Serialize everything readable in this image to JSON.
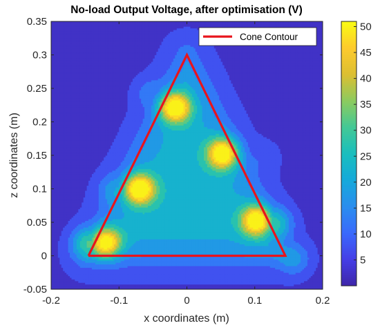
{
  "chart_data": {
    "type": "heatmap",
    "subtype": "filled-contour",
    "title": "No-load Output Voltage, after optimisation (V)",
    "xlabel": "x coordinates (m)",
    "ylabel": "z coordinates (m)",
    "xlim": [
      -0.2,
      0.2
    ],
    "ylim": [
      -0.05,
      0.35
    ],
    "x_ticks": [
      -0.2,
      -0.1,
      0,
      0.1,
      0.2
    ],
    "x_tick_labels": [
      "-0.2",
      "-0.1",
      "0",
      "0.1",
      "0.2"
    ],
    "y_ticks": [
      -0.05,
      0,
      0.05,
      0.1,
      0.15,
      0.2,
      0.25,
      0.3,
      0.35
    ],
    "y_tick_labels": [
      "-0.05",
      "0",
      "0.05",
      "0.1",
      "0.15",
      "0.2",
      "0.25",
      "0.3",
      "0.35"
    ],
    "colorbar": {
      "colormap": "parula",
      "range": [
        0,
        51
      ],
      "ticks": [
        5,
        10,
        15,
        20,
        25,
        30,
        35,
        40,
        45,
        50
      ],
      "tick_labels": [
        "5",
        "10",
        "15",
        "20",
        "25",
        "30",
        "35",
        "40",
        "45",
        "50"
      ]
    },
    "legend": {
      "position": "top-right",
      "entries": [
        {
          "label": "Cone Contour",
          "color": "#e8141c"
        }
      ]
    },
    "grid": false,
    "cone_contour": {
      "x": [
        -0.145,
        0,
        0.145,
        -0.145
      ],
      "z": [
        0.0,
        0.3,
        0.0,
        0.0
      ],
      "color": "#e8141c"
    },
    "peaks": [
      {
        "x": -0.018,
        "z": 0.222,
        "value": 48
      },
      {
        "x": 0.053,
        "z": 0.153,
        "value": 48
      },
      {
        "x": 0.103,
        "z": 0.053,
        "value": 48
      },
      {
        "x": -0.07,
        "z": 0.1,
        "value": 48
      },
      {
        "x": -0.12,
        "z": 0.02,
        "value": 45
      },
      {
        "x": -0.148,
        "z": 0.02,
        "value": 25
      },
      {
        "x": 0.132,
        "z": 0.05,
        "value": 22
      },
      {
        "x": 0.16,
        "z": -0.005,
        "value": 14
      },
      {
        "x": -0.058,
        "z": 0.245,
        "value": 12
      },
      {
        "x": -0.11,
        "z": 0.1,
        "value": 14
      },
      {
        "x": 0.118,
        "z": 0.15,
        "value": 10
      }
    ]
  }
}
